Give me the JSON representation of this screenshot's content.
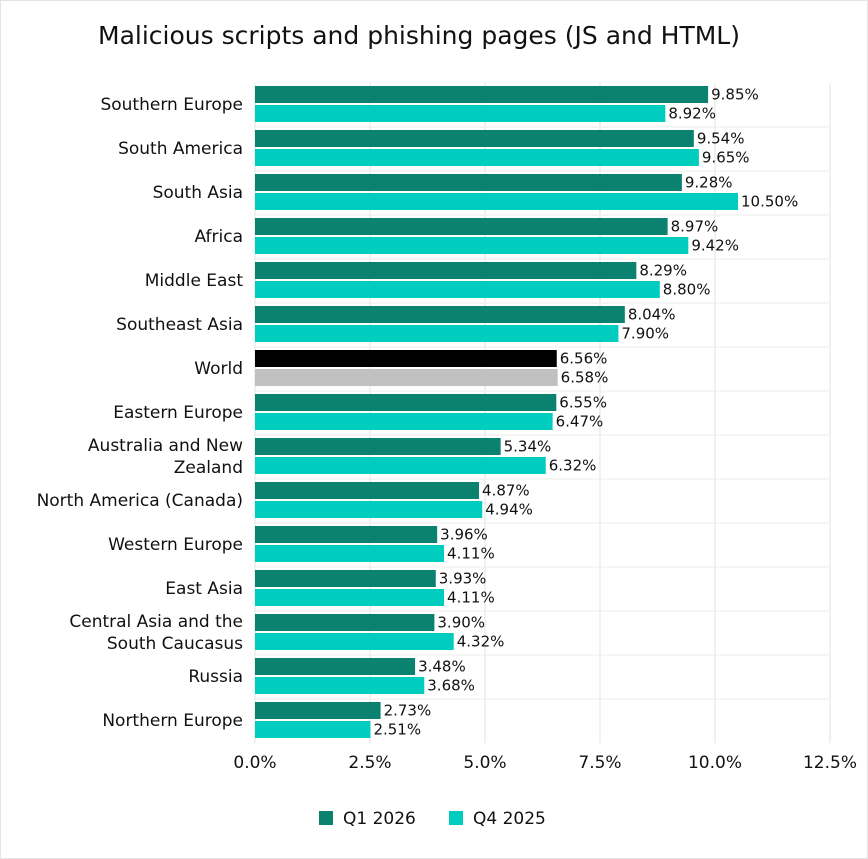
{
  "chart_data": {
    "type": "barh",
    "title": "Malicious scripts and phishing pages (JS and HTML)",
    "categories": [
      "Southern Europe",
      "South America",
      "South Asia",
      "Africa",
      "Middle East",
      "Southeast Asia",
      "World",
      "Eastern Europe",
      "Australia and New Zealand",
      "North America (Canada)",
      "Western Europe",
      "East Asia",
      "Central Asia and the South Caucasus",
      "Russia",
      "Northern Europe"
    ],
    "series": [
      {
        "name": "Q1 2026",
        "color": "#0b8170",
        "colors": [
          "#0b8170",
          "#0b8170",
          "#0b8170",
          "#0b8170",
          "#0b8170",
          "#0b8170",
          "#000000",
          "#0b8170",
          "#0b8170",
          "#0b8170",
          "#0b8170",
          "#0b8170",
          "#0b8170",
          "#0b8170",
          "#0b8170"
        ],
        "values": [
          9.85,
          9.54,
          9.28,
          8.97,
          8.29,
          8.04,
          6.56,
          6.55,
          5.34,
          4.87,
          3.96,
          3.93,
          3.9,
          3.48,
          2.73
        ],
        "value_labels": [
          "9.85%",
          "9.54%",
          "9.28%",
          "8.97%",
          "8.29%",
          "8.04%",
          "6.56%",
          "6.55%",
          "5.34%",
          "4.87%",
          "3.96%",
          "3.93%",
          "3.90%",
          "3.48%",
          "2.73%"
        ]
      },
      {
        "name": "Q4 2025",
        "color": "#00cdbe",
        "colors": [
          "#00cdbe",
          "#00cdbe",
          "#00cdbe",
          "#00cdbe",
          "#00cdbe",
          "#00cdbe",
          "#c0c0c0",
          "#00cdbe",
          "#00cdbe",
          "#00cdbe",
          "#00cdbe",
          "#00cdbe",
          "#00cdbe",
          "#00cdbe",
          "#00cdbe"
        ],
        "values": [
          8.92,
          9.65,
          10.5,
          9.42,
          8.8,
          7.9,
          6.58,
          6.47,
          6.32,
          4.94,
          4.11,
          4.11,
          4.32,
          3.68,
          2.51
        ],
        "value_labels": [
          "8.92%",
          "9.65%",
          "10.50%",
          "9.42%",
          "8.80%",
          "7.90%",
          "6.58%",
          "6.47%",
          "6.32%",
          "4.94%",
          "4.11%",
          "4.11%",
          "4.32%",
          "3.68%",
          "2.51%"
        ]
      }
    ],
    "xlim": [
      0,
      12.5
    ],
    "xticks": [
      {
        "value": 0,
        "label": "0.0%"
      },
      {
        "value": 2.5,
        "label": "2.5%"
      },
      {
        "value": 5,
        "label": "5.0%"
      },
      {
        "value": 7.5,
        "label": "7.5%"
      },
      {
        "value": 10,
        "label": "10.0%"
      },
      {
        "value": 12.5,
        "label": "12.5%"
      }
    ],
    "grid": true,
    "legend": "bottom"
  }
}
